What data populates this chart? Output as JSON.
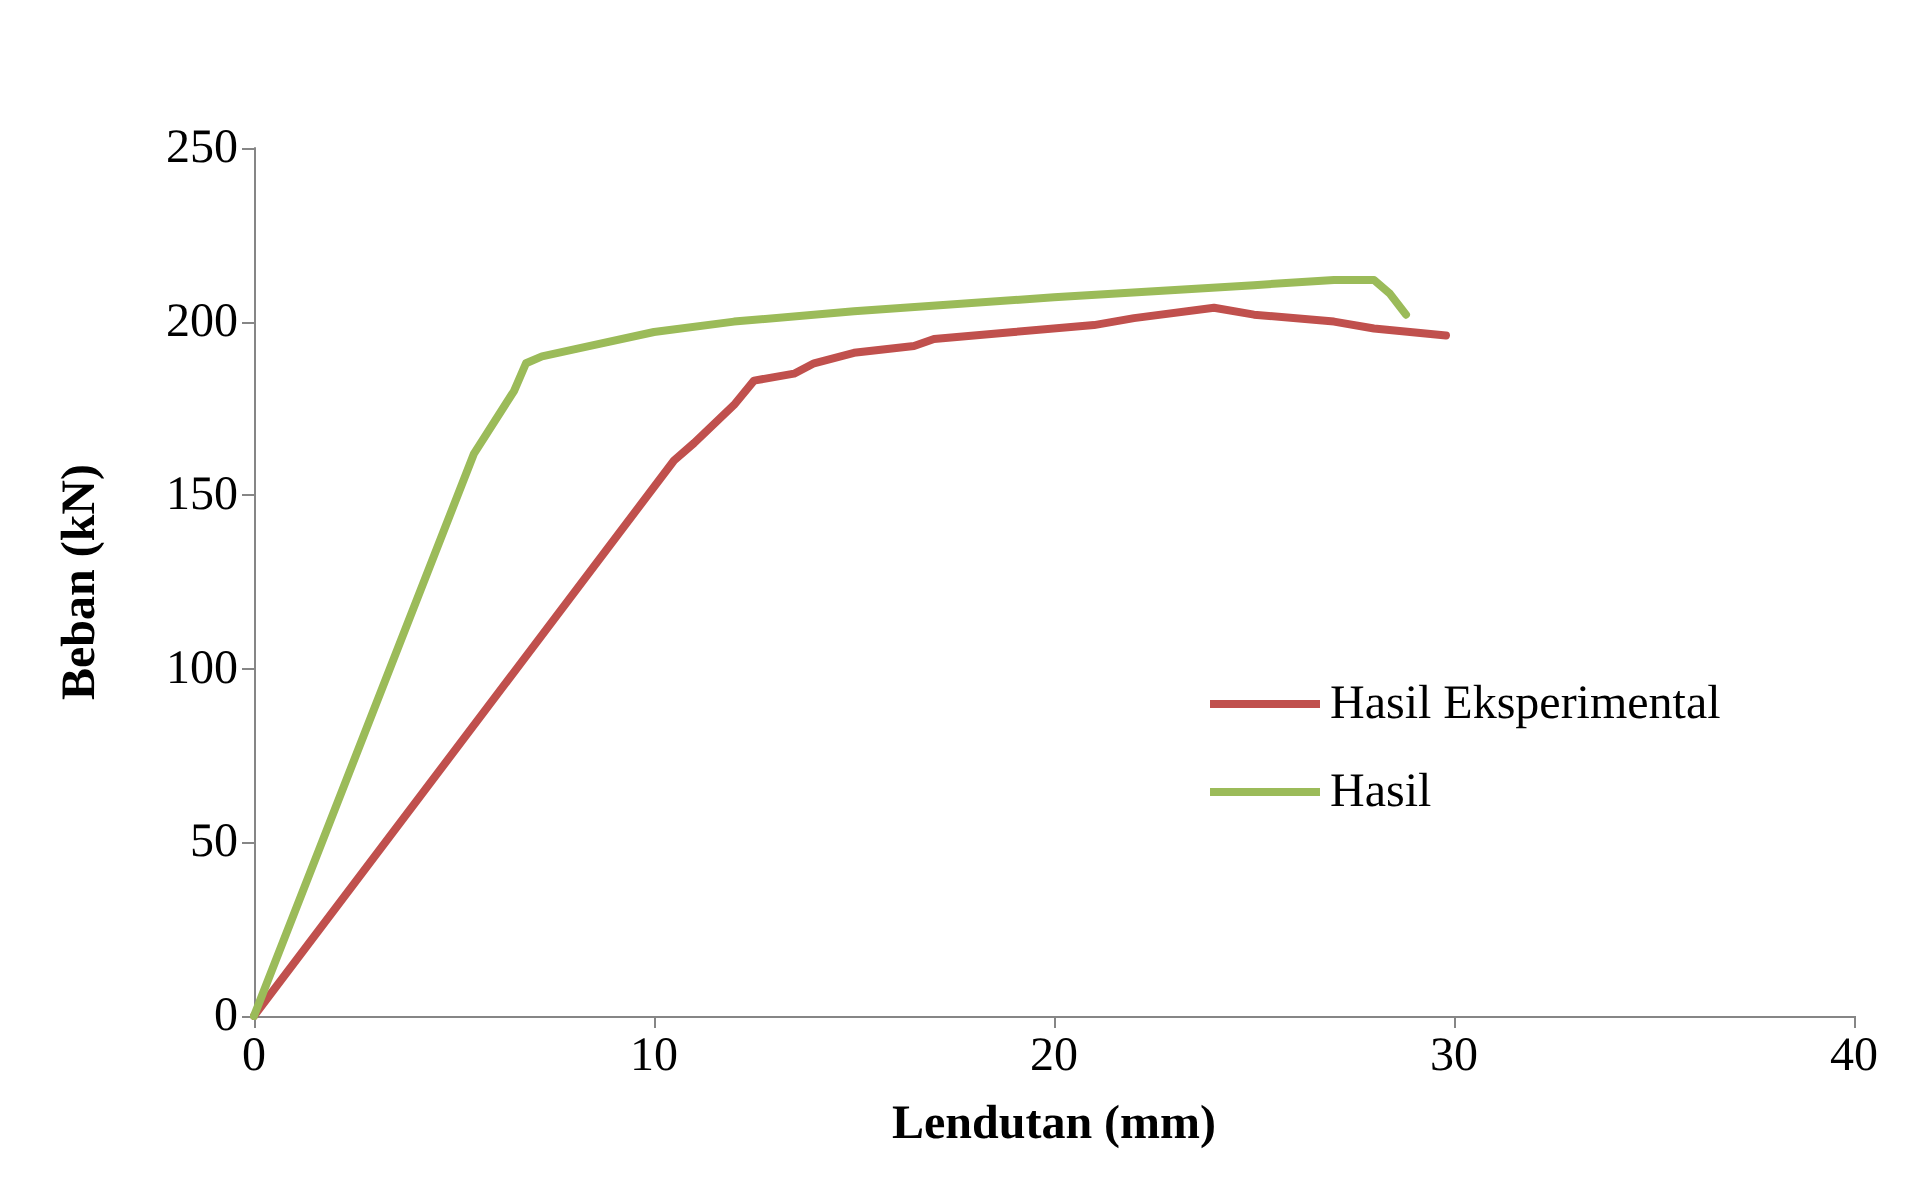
{
  "chart_data": {
    "type": "line",
    "xlabel": "Lendutan (mm)",
    "ylabel": "Beban (kN)",
    "xlim": [
      0,
      40
    ],
    "xticks": [
      0,
      10,
      20,
      30,
      40
    ],
    "ylim": [
      0,
      250
    ],
    "yticks": [
      0,
      50,
      100,
      150,
      200,
      250
    ],
    "grid": false,
    "legend": "right",
    "marker": "none",
    "line_style": "solid",
    "series": [
      {
        "name": "Hasil Eksperimental",
        "color": "#c0504d",
        "x": [
          0,
          10.5,
          11,
          12,
          12.5,
          13.5,
          14,
          15,
          16.5,
          17,
          19,
          21,
          22,
          24,
          25,
          27,
          28,
          29.8
        ],
        "values": [
          0,
          160,
          165,
          176,
          183,
          185,
          188,
          191,
          193,
          195,
          197,
          199,
          201,
          204,
          202,
          200,
          198,
          196
        ]
      },
      {
        "name": "Hasil",
        "color": "#9bbb59",
        "x": [
          0,
          5.5,
          6.5,
          6.8,
          7.2,
          8,
          10,
          12,
          15,
          20,
          25,
          27,
          28,
          28.4,
          28.8
        ],
        "values": [
          0,
          162,
          180,
          188,
          190,
          192,
          197,
          200,
          203,
          207,
          210.5,
          212,
          212,
          208,
          202
        ]
      }
    ]
  }
}
